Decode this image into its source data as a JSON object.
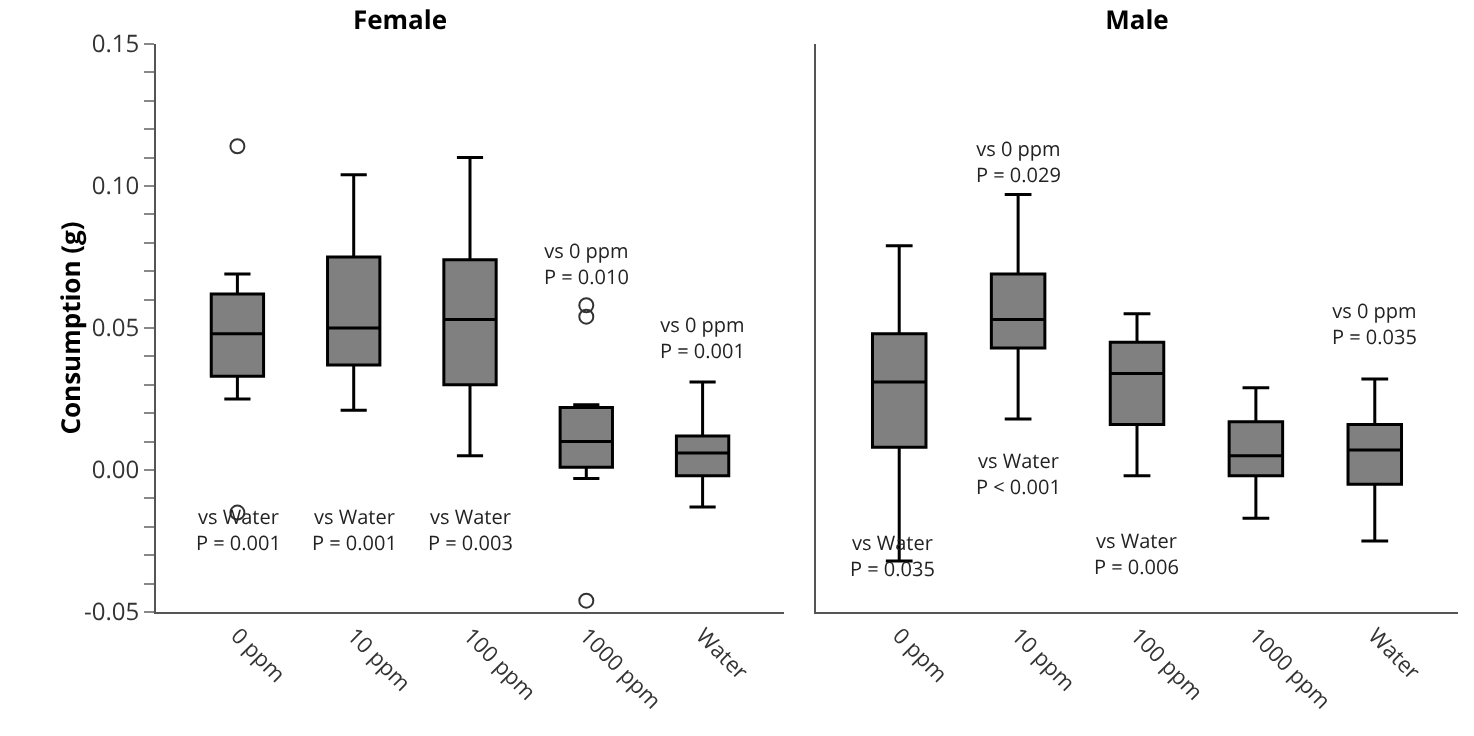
{
  "chart_data": [
    {
      "type": "box",
      "title": "Female",
      "ylabel": "Consumption (g)",
      "categories": [
        "0 ppm",
        "10 ppm",
        "100 ppm",
        "1000 ppm",
        "Water"
      ],
      "grid": false,
      "color": "#808080",
      "ylim": [
        -0.05,
        0.15
      ],
      "yticks": [
        {
          "value": -0.05,
          "label": "-0.05"
        },
        {
          "value": -0.04,
          "label": null
        },
        {
          "value": -0.03,
          "label": null
        },
        {
          "value": -0.02,
          "label": null
        },
        {
          "value": -0.01,
          "label": null
        },
        {
          "value": 0,
          "label": "0.00"
        },
        {
          "value": 0.01,
          "label": null
        },
        {
          "value": 0.02,
          "label": null
        },
        {
          "value": 0.03,
          "label": null
        },
        {
          "value": 0.04,
          "label": null
        },
        {
          "value": 0.05,
          "label": "0.05"
        },
        {
          "value": 0.06,
          "label": null
        },
        {
          "value": 0.07,
          "label": null
        },
        {
          "value": 0.08,
          "label": null
        },
        {
          "value": 0.09,
          "label": null
        },
        {
          "value": 0.1,
          "label": "0.10"
        },
        {
          "value": 0.11,
          "label": null
        },
        {
          "value": 0.12,
          "label": null
        },
        {
          "value": 0.13,
          "label": null
        },
        {
          "value": 0.14,
          "label": null
        },
        {
          "value": 0.15,
          "label": "0.15"
        }
      ],
      "boxes": [
        {
          "low": 0.025,
          "q1": 0.033,
          "median": 0.048,
          "q3": 0.062,
          "high": 0.069,
          "outliers": [
            0.114,
            -0.015
          ]
        },
        {
          "low": 0.021,
          "q1": 0.037,
          "median": 0.05,
          "q3": 0.075,
          "high": 0.104
        },
        {
          "low": 0.005,
          "q1": 0.03,
          "median": 0.053,
          "q3": 0.074,
          "high": 0.11
        },
        {
          "low": -0.003,
          "q1": 0.001,
          "median": 0.01,
          "q3": 0.022,
          "high": 0.023,
          "outliers": [
            0.058,
            0.054,
            -0.046
          ]
        },
        {
          "low": -0.013,
          "q1": -0.002,
          "median": 0.006,
          "q3": 0.012,
          "high": 0.031
        }
      ],
      "annotations": [
        "vs Water\nP = 0.001",
        "vs Water\nP = 0.001",
        "vs Water\nP = 0.003",
        "vs 0 ppm\nP = 0.010",
        "vs 0 ppm\nP = 0.001"
      ]
    },
    {
      "type": "box",
      "title": "Male",
      "categories": [
        "0 ppm",
        "10 ppm",
        "100 ppm",
        "1000 ppm",
        "Water"
      ],
      "grid": false,
      "color": "#808080",
      "tick_labels": "x",
      "ylim": [
        -0.05,
        0.15
      ],
      "boxes": [
        {
          "low": -0.032,
          "q1": 0.008,
          "median": 0.031,
          "q3": 0.048,
          "high": 0.079
        },
        {
          "low": 0.018,
          "q1": 0.043,
          "median": 0.053,
          "q3": 0.069,
          "high": 0.097
        },
        {
          "low": -0.002,
          "q1": 0.016,
          "median": 0.034,
          "q3": 0.045,
          "high": 0.055
        },
        {
          "low": -0.017,
          "q1": -0.002,
          "median": 0.005,
          "q3": 0.017,
          "high": 0.029
        },
        {
          "low": -0.025,
          "q1": -0.005,
          "median": 0.007,
          "q3": 0.016,
          "high": 0.032
        }
      ],
      "annotations": [
        "vs Water\nP = 0.035",
        "vs 0 ppm\nP = 0.029",
        "vs Water\nP < 0.001",
        "vs Water\nP = 0.006",
        "vs 0 ppm\nP = 0.035"
      ]
    }
  ]
}
